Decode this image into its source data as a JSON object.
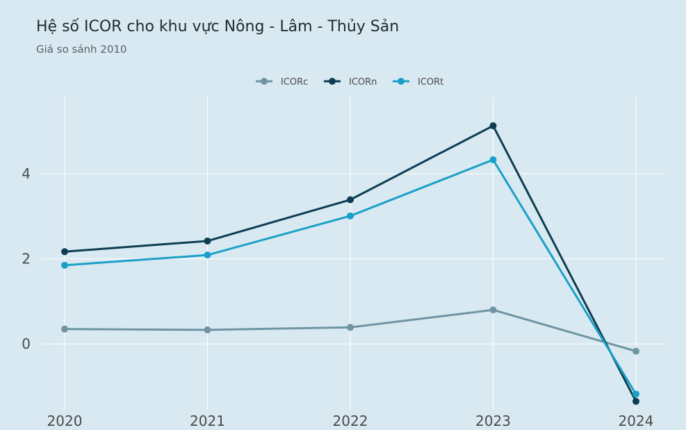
{
  "chart_data": {
    "type": "line",
    "title": "Hệ số ICOR cho khu vực Nông - Lâm - Thủy Sản",
    "subtitle": "Giá so sánh 2010",
    "xlabel": "",
    "ylabel": "",
    "x": [
      "2020",
      "2021",
      "2022",
      "2023",
      "2024"
    ],
    "ylim": [
      -1.55,
      5.8
    ],
    "yticks": [
      0,
      2,
      4
    ],
    "grid": true,
    "legend_position": "top-center",
    "series": [
      {
        "name": "ICORc",
        "color": "#6f94a3",
        "values": [
          0.35,
          0.33,
          0.39,
          0.8,
          -0.17
        ]
      },
      {
        "name": "ICORn",
        "color": "#0c3d52",
        "values": [
          2.17,
          2.42,
          3.39,
          5.13,
          -1.35
        ]
      },
      {
        "name": "ICORt",
        "color": "#1aa0c8",
        "values": [
          1.85,
          2.09,
          3.01,
          4.33,
          -1.18
        ]
      }
    ]
  }
}
